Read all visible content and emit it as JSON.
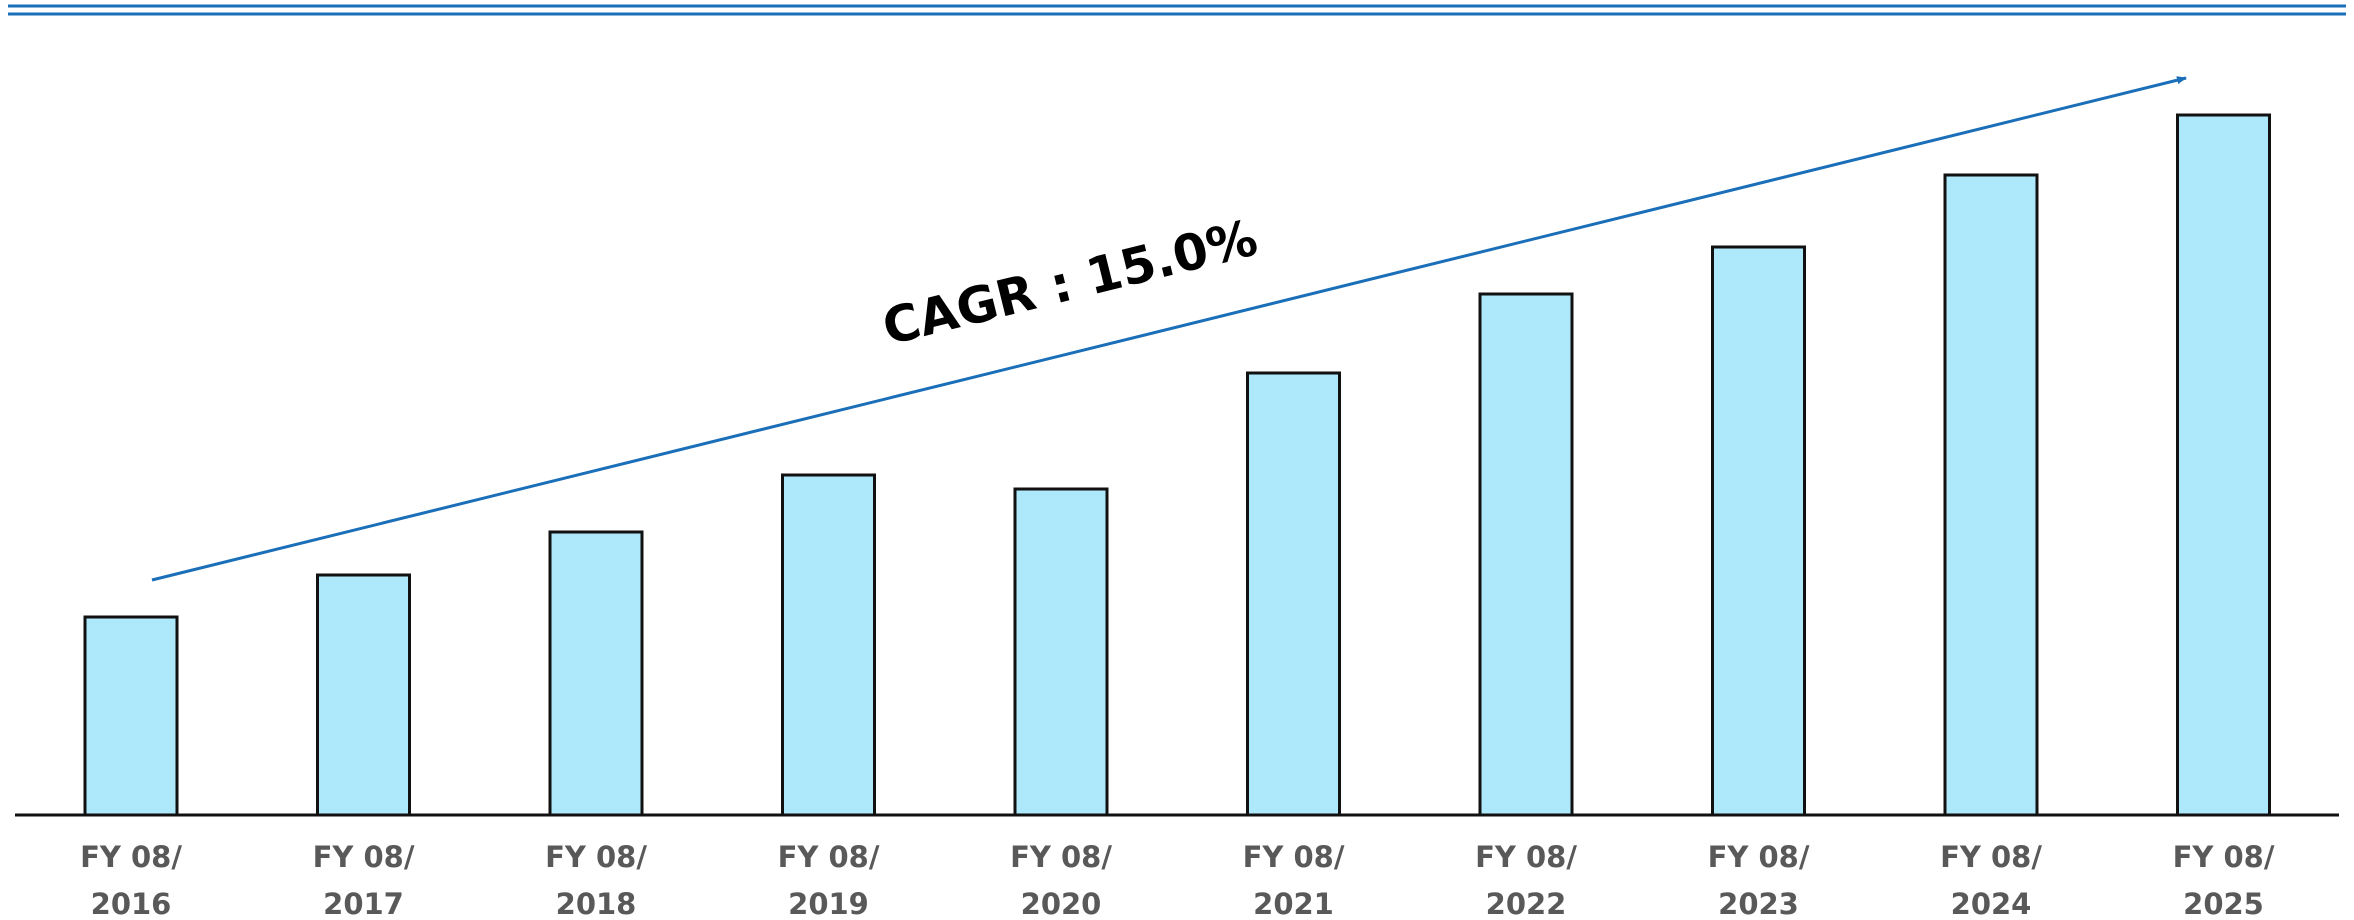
{
  "chart_data": {
    "type": "bar",
    "title": "",
    "xlabel": "",
    "ylabel": "",
    "categories": [
      [
        "FY 08/",
        "2016"
      ],
      [
        "FY 08/",
        "2017"
      ],
      [
        "FY 08/",
        "2018"
      ],
      [
        "FY 08/",
        "2019"
      ],
      [
        "FY 08/",
        "2020"
      ],
      [
        "FY 08/",
        "2021"
      ],
      [
        "FY 08/",
        "2022"
      ],
      [
        "FY 08/",
        "2023"
      ],
      [
        "FY 08/",
        "2024"
      ],
      [
        "FY 08/",
        "2025"
      ]
    ],
    "values": [
      198,
      240,
      283,
      340,
      326,
      442,
      521,
      568,
      640,
      700
    ],
    "ylim": [
      0,
      760
    ],
    "y_axis_visible": false,
    "grid": false,
    "annotation": {
      "text": "CAGR : 15.0%"
    },
    "trend_arrow": true
  },
  "colors": {
    "bar_fill": "#ADE8FB",
    "bar_edge": "#111111",
    "arrow": "#1A6FB8",
    "top_rule": "#1A6FB8",
    "baseline": "#111111",
    "tick_text": "#595959",
    "annotation_text": "#000000"
  }
}
